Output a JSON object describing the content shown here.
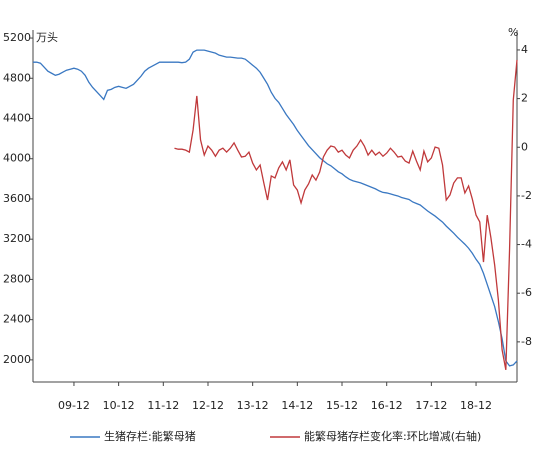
{
  "chart_data": {
    "type": "line",
    "y_label": "万头",
    "y2_label": "%",
    "categories": [
      null,
      null,
      null,
      null,
      null,
      null,
      null,
      null,
      null,
      null,
      null,
      "09-12",
      null,
      null,
      null,
      null,
      null,
      null,
      null,
      null,
      null,
      null,
      null,
      "10-12",
      null,
      null,
      null,
      null,
      null,
      null,
      null,
      null,
      null,
      null,
      null,
      "11-12",
      null,
      null,
      null,
      null,
      null,
      null,
      null,
      null,
      null,
      null,
      null,
      "12-12",
      null,
      null,
      null,
      null,
      null,
      null,
      null,
      null,
      null,
      null,
      null,
      "13-12",
      null,
      null,
      null,
      null,
      null,
      null,
      null,
      null,
      null,
      null,
      null,
      "14-12",
      null,
      null,
      null,
      null,
      null,
      null,
      null,
      null,
      null,
      null,
      null,
      "15-12",
      null,
      null,
      null,
      null,
      null,
      null,
      null,
      null,
      null,
      null,
      null,
      "16-12",
      null,
      null,
      null,
      null,
      null,
      null,
      null,
      null,
      null,
      null,
      null,
      "17-12",
      null,
      null,
      null,
      null,
      null,
      null,
      null,
      null,
      null,
      null,
      null,
      "18-12",
      null,
      null,
      null,
      null,
      null,
      null,
      null,
      null,
      null,
      null,
      null
    ],
    "series": [
      {
        "name": "生猪存栏:能繁母猪",
        "color": "#3a78c2",
        "values": [
          4960,
          4960,
          4950,
          4910,
          4870,
          4850,
          4830,
          4840,
          4860,
          4880,
          4890,
          4900,
          4890,
          4870,
          4830,
          4760,
          4710,
          4670,
          4630,
          4590,
          4680,
          4690,
          4710,
          4720,
          4710,
          4700,
          4720,
          4740,
          4780,
          4820,
          4870,
          4900,
          4920,
          4940,
          4960,
          4960,
          4960,
          4960,
          4960,
          4960,
          4955,
          4960,
          4990,
          5060,
          5080,
          5080,
          5080,
          5070,
          5060,
          5050,
          5030,
          5020,
          5010,
          5010,
          5005,
          5000,
          5000,
          4990,
          4960,
          4930,
          4900,
          4860,
          4800,
          4740,
          4660,
          4600,
          4560,
          4500,
          4440,
          4390,
          4340,
          4280,
          4230,
          4180,
          4130,
          4090,
          4050,
          4010,
          3980,
          3950,
          3930,
          3900,
          3870,
          3850,
          3820,
          3795,
          3780,
          3770,
          3760,
          3745,
          3730,
          3715,
          3700,
          3680,
          3665,
          3660,
          3650,
          3640,
          3630,
          3615,
          3605,
          3595,
          3570,
          3555,
          3540,
          3510,
          3480,
          3455,
          3430,
          3400,
          3370,
          3330,
          3295,
          3260,
          3220,
          3185,
          3150,
          3110,
          3060,
          3000,
          2950,
          2860,
          2750,
          2640,
          2530,
          2380,
          2210,
          1990,
          1940,
          1950,
          1990
        ]
      },
      {
        "name": "能繁母猪存栏变化率:环比增减(右轴)",
        "color": "#c0393b",
        "axis": "y2",
        "values": [
          null,
          null,
          null,
          null,
          null,
          null,
          null,
          null,
          null,
          null,
          null,
          null,
          null,
          null,
          null,
          null,
          null,
          null,
          null,
          null,
          null,
          null,
          null,
          null,
          null,
          null,
          null,
          null,
          null,
          null,
          null,
          null,
          null,
          null,
          null,
          null,
          null,
          null,
          -0.04,
          -0.08,
          -0.08,
          -0.12,
          -0.2,
          0.71,
          2.11,
          0.3,
          -0.32,
          0.05,
          -0.12,
          -0.37,
          -0.12,
          -0.04,
          -0.2,
          -0.04,
          0.18,
          -0.12,
          -0.4,
          -0.37,
          -0.2,
          -0.65,
          -0.93,
          -0.73,
          -1.47,
          -2.17,
          -1.18,
          -1.26,
          -0.85,
          -0.6,
          -0.93,
          -0.52,
          -1.55,
          -1.76,
          -2.29,
          -1.76,
          -1.51,
          -1.14,
          -1.35,
          -1.02,
          -0.4,
          -0.12,
          0.05,
          0.01,
          -0.2,
          -0.12,
          -0.32,
          -0.44,
          -0.12,
          0.05,
          0.3,
          0.05,
          -0.32,
          -0.12,
          -0.32,
          -0.2,
          -0.37,
          -0.24,
          -0.04,
          -0.2,
          -0.4,
          -0.37,
          -0.57,
          -0.65,
          -0.16,
          -0.57,
          -0.93,
          -0.16,
          -0.6,
          -0.44,
          0.01,
          -0.04,
          -0.73,
          -2.17,
          -1.96,
          -1.47,
          -1.26,
          -1.26,
          -1.88,
          -1.59,
          -2.13,
          -2.79,
          -3.07,
          -4.72,
          -2.79,
          -3.73,
          -4.84,
          -6.28,
          -8.33,
          -9.15,
          -4.22,
          1.94,
          3.59
        ]
      }
    ],
    "ylim": [
      1780,
      5280
    ],
    "yticks": [
      2000,
      2400,
      2800,
      3200,
      3600,
      4000,
      4400,
      4800,
      5200
    ],
    "y2lim": [
      -9.65,
      4.82
    ],
    "y2ticks": [
      -8,
      -6,
      -4,
      -2,
      0,
      2,
      4
    ],
    "grid": false,
    "legend": "bottom"
  }
}
